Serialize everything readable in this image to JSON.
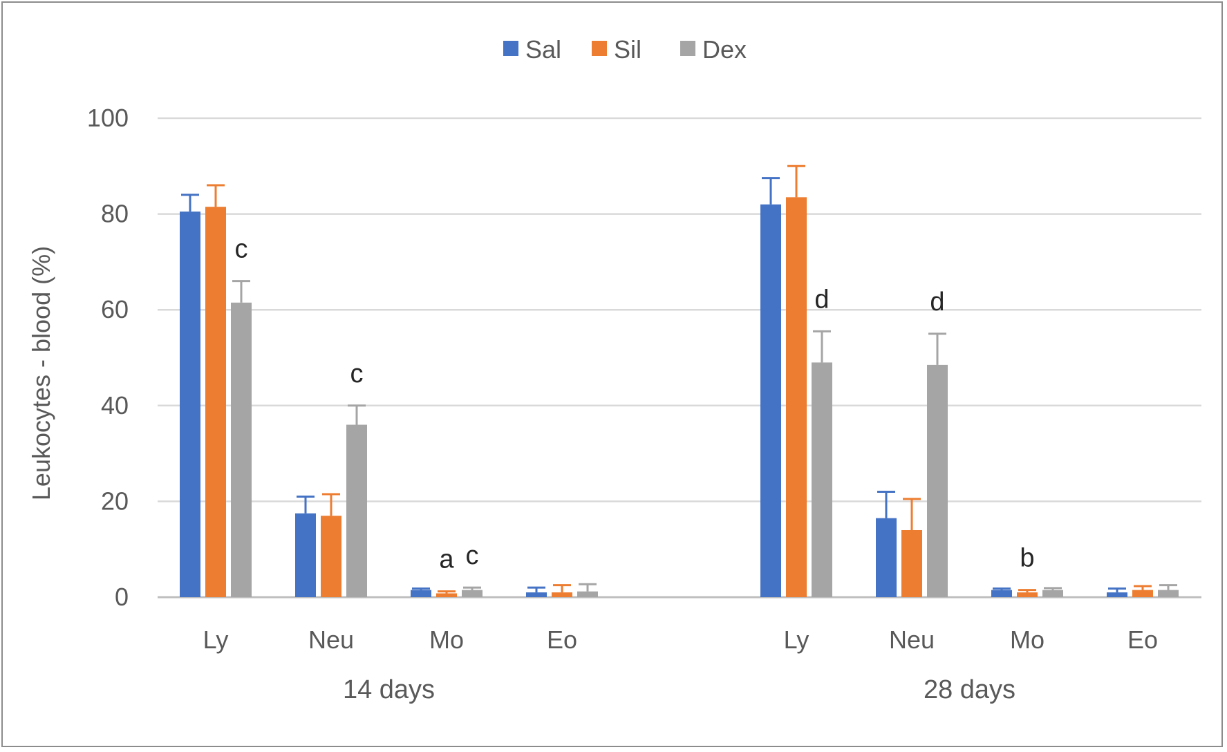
{
  "chart_data": {
    "type": "bar",
    "title": "",
    "xlabel": "",
    "ylabel": "Leukocytes - blood (%)",
    "ylim": [
      0,
      100
    ],
    "yticks": [
      0,
      20,
      40,
      60,
      80,
      100
    ],
    "grid": true,
    "legend_position": "top-center",
    "groups": [
      {
        "label": "14 days",
        "categories": [
          "Ly",
          "Neu",
          "Mo",
          "Eo"
        ],
        "series": [
          {
            "name": "Sal",
            "color": "#4472c4",
            "values": [
              80.5,
              17.5,
              1.5,
              1.0
            ],
            "errors": [
              3.5,
              3.5,
              0.3,
              1.0
            ]
          },
          {
            "name": "Sil",
            "color": "#ed7d31",
            "values": [
              81.5,
              17.0,
              0.8,
              1.0
            ],
            "errors": [
              4.5,
              4.5,
              0.4,
              1.5
            ]
          },
          {
            "name": "Dex",
            "color": "#a5a5a5",
            "values": [
              61.5,
              36.0,
              1.5,
              1.2
            ],
            "errors": [
              4.5,
              4.0,
              0.5,
              1.5
            ]
          }
        ],
        "annotations": [
          {
            "category": "Ly",
            "series": "Dex",
            "text": "c"
          },
          {
            "category": "Neu",
            "series": "Dex",
            "text": "c"
          },
          {
            "category": "Mo",
            "series": "Sil",
            "text": "a"
          },
          {
            "category": "Mo",
            "series": "Dex",
            "text": "c"
          }
        ]
      },
      {
        "label": "28 days",
        "categories": [
          "Ly",
          "Neu",
          "Mo",
          "Eo"
        ],
        "series": [
          {
            "name": "Sal",
            "color": "#4472c4",
            "values": [
              82.0,
              16.5,
              1.5,
              1.0
            ],
            "errors": [
              5.5,
              5.5,
              0.3,
              0.8
            ]
          },
          {
            "name": "Sil",
            "color": "#ed7d31",
            "values": [
              83.5,
              14.0,
              1.0,
              1.5
            ],
            "errors": [
              6.5,
              6.5,
              0.5,
              0.8
            ]
          },
          {
            "name": "Dex",
            "color": "#a5a5a5",
            "values": [
              49.0,
              48.5,
              1.5,
              1.5
            ],
            "errors": [
              6.5,
              6.5,
              0.4,
              1.0
            ]
          }
        ],
        "annotations": [
          {
            "category": "Ly",
            "series": "Dex",
            "text": "d"
          },
          {
            "category": "Neu",
            "series": "Dex",
            "text": "d"
          },
          {
            "category": "Mo",
            "series": "Sil",
            "text": "b"
          }
        ]
      }
    ],
    "legend": [
      {
        "name": "Sal",
        "color": "#4472c4"
      },
      {
        "name": "Sil",
        "color": "#ed7d31"
      },
      {
        "name": "Dex",
        "color": "#a5a5a5"
      }
    ]
  }
}
